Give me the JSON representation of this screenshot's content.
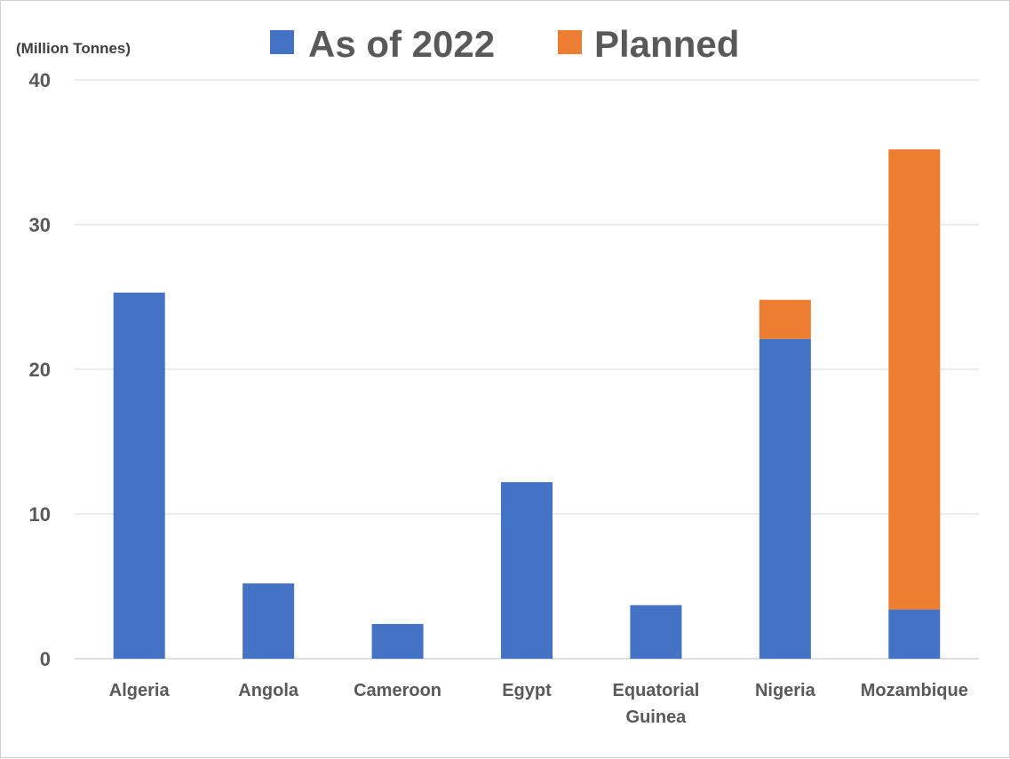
{
  "chart_data": {
    "type": "bar",
    "stacked": true,
    "categories": [
      [
        "Algeria"
      ],
      [
        "Angola"
      ],
      [
        "Cameroon"
      ],
      [
        "Egypt"
      ],
      [
        "Equatorial",
        "Guinea"
      ],
      [
        "Nigeria"
      ],
      [
        "Mozambique"
      ]
    ],
    "series": [
      {
        "name": "As of 2022",
        "color": "#4472C4",
        "values": [
          25.3,
          5.2,
          2.4,
          12.2,
          3.7,
          22.1,
          3.4
        ]
      },
      {
        "name": "Planned",
        "color": "#ED7D31",
        "values": [
          0,
          0,
          0,
          0,
          0,
          2.7,
          31.8
        ]
      }
    ],
    "unit_label": "(Million Tonnes)",
    "ylim": [
      0,
      40
    ],
    "yticks": [
      0,
      10,
      20,
      30,
      40
    ],
    "grid": true,
    "legend_position": "top-center"
  }
}
